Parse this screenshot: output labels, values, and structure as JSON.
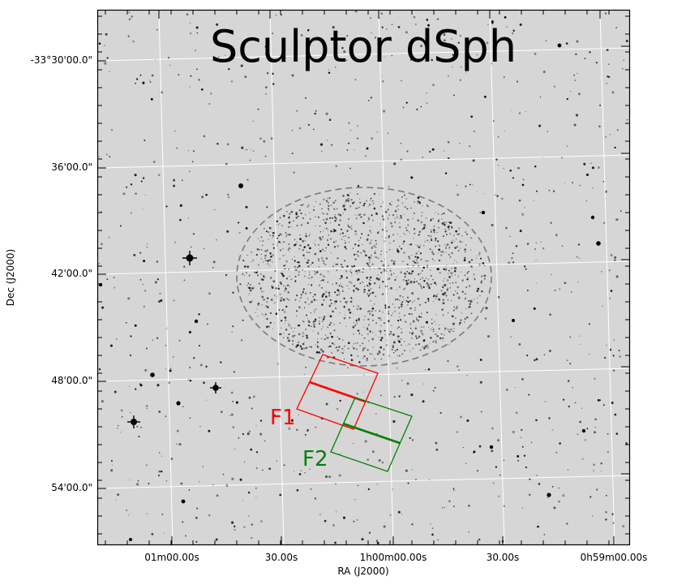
{
  "title": "Sculptor dSph",
  "axes": {
    "xlabel": "RA (J2000)",
    "ylabel": "Dec (J2000)",
    "x_ticks": [
      "01m00.00s",
      "30.00s",
      "1h00m00.00s",
      "30.00s",
      "0h59m00.00s"
    ],
    "y_ticks": [
      "-33°30'00.0\"",
      "36'00.0\"",
      "42'00.0\"",
      "48'00.0\"",
      "54'00.0\""
    ]
  },
  "fields": [
    {
      "label": "F1",
      "color": "#ff0000"
    },
    {
      "label": "F2",
      "color": "#008000"
    }
  ],
  "colors": {
    "sky_background": "#d9d9d9",
    "star": "#000000",
    "grid": "#ffffff",
    "ellipse": "#7a7a7a"
  }
}
